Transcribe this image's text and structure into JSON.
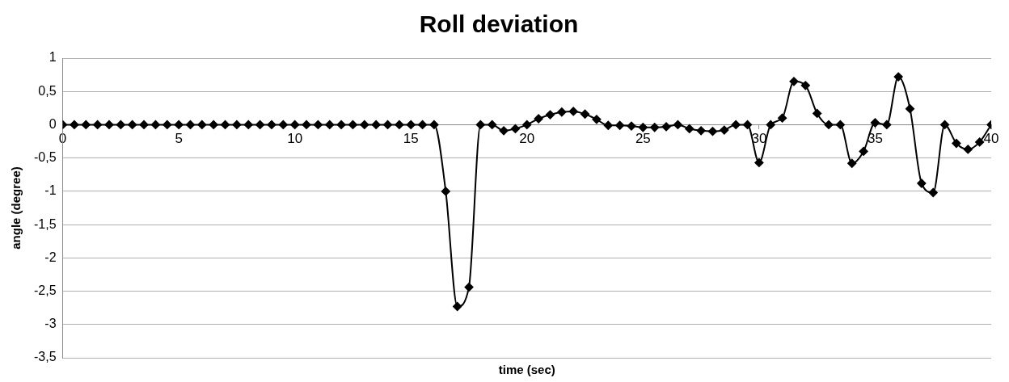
{
  "chart_data": {
    "type": "line",
    "title": "Roll deviation",
    "xlabel": "time (sec)",
    "ylabel": "angle (degree)",
    "x": [
      0,
      0.5,
      1,
      1.5,
      2,
      2.5,
      3,
      3.5,
      4,
      4.5,
      5,
      5.5,
      6,
      6.5,
      7,
      7.5,
      8,
      8.5,
      9,
      9.5,
      10,
      10.5,
      11,
      11.5,
      12,
      12.5,
      13,
      13.5,
      14,
      14.5,
      15,
      15.5,
      16,
      16.5,
      17,
      17.5,
      18,
      18.5,
      19,
      19.5,
      20,
      20.5,
      21,
      21.5,
      22,
      22.5,
      23,
      23.5,
      24,
      24.5,
      25,
      25.5,
      26,
      26.5,
      27,
      27.5,
      28,
      28.5,
      29,
      29.5,
      30,
      30.5,
      31,
      31.5,
      32,
      32.5,
      33,
      33.5,
      34,
      34.5,
      35,
      35.5,
      36,
      36.5,
      37,
      37.5,
      38,
      38.5,
      39,
      39.5,
      40
    ],
    "series": [
      {
        "color": "#000000",
        "values": [
          0,
          0,
          0,
          0,
          0,
          0,
          0,
          0,
          0,
          0,
          0,
          0,
          0,
          0,
          0,
          0,
          0,
          0,
          0,
          0,
          0,
          0,
          0,
          0,
          0,
          0,
          0,
          0,
          0,
          0,
          0,
          0,
          0,
          -1.0,
          -2.73,
          -2.44,
          0,
          0,
          -0.09,
          -0.06,
          0,
          0.09,
          0.15,
          0.19,
          0.2,
          0.16,
          0.08,
          -0.01,
          -0.01,
          -0.02,
          -0.04,
          -0.04,
          -0.03,
          0,
          -0.06,
          -0.09,
          -0.1,
          -0.08,
          0,
          0,
          -0.57,
          0,
          0.1,
          0.65,
          0.59,
          0.17,
          0,
          0,
          -0.58,
          -0.4,
          0.03,
          0,
          0.72,
          0.24,
          -0.88,
          -1.02,
          0,
          -0.28,
          -0.37,
          -0.26,
          0
        ]
      }
    ],
    "xlim": [
      0,
      40
    ],
    "xticks": [
      0,
      5,
      10,
      15,
      20,
      25,
      30,
      35,
      40
    ],
    "ylim": [
      -3.5,
      1
    ],
    "yticks": [
      {
        "value": -3.5,
        "label": "-3,5"
      },
      {
        "value": -3,
        "label": "-3"
      },
      {
        "value": -2.5,
        "label": "-2,5"
      },
      {
        "value": -2,
        "label": "-2"
      },
      {
        "value": -1.5,
        "label": "-1,5"
      },
      {
        "value": -1,
        "label": "-1"
      },
      {
        "value": -0.5,
        "label": "-0,5"
      },
      {
        "value": 0,
        "label": "0"
      },
      {
        "value": 0.5,
        "label": "0,5"
      },
      {
        "value": 1,
        "label": "1"
      }
    ],
    "grid": "y",
    "legend": false,
    "marker": "diamond",
    "line_style": "solid"
  }
}
